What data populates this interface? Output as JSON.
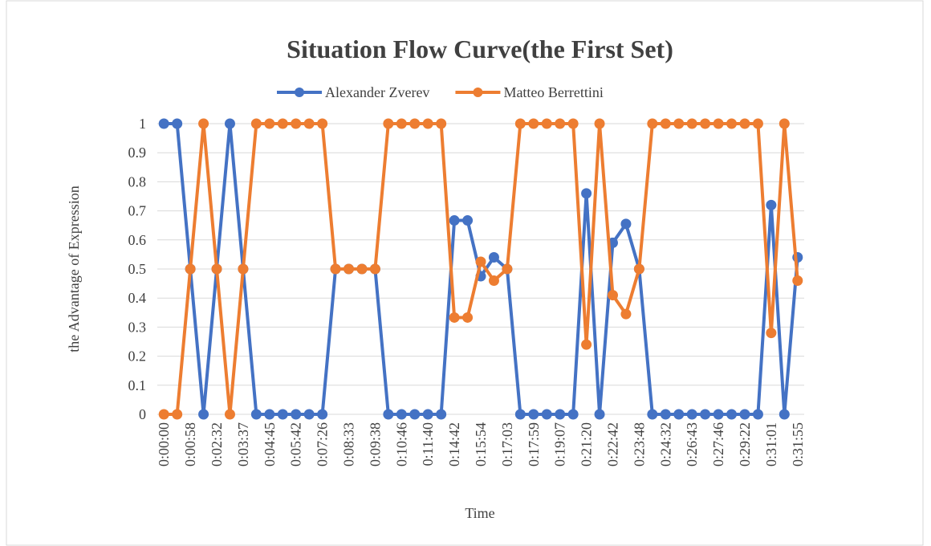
{
  "chart_data": {
    "type": "line",
    "title": "Situation Flow Curve(the First Set)",
    "x_label": "Time",
    "y_label": "the Advantage of Expression",
    "categories": [
      "0:00:00",
      null,
      "0:00:58",
      null,
      "0:02:32",
      null,
      "0:03:37",
      null,
      "0:04:45",
      null,
      "0:05:42",
      null,
      "0:07:26",
      null,
      "0:08:33",
      null,
      "0:09:38",
      null,
      "0:10:46",
      null,
      "0:11:40",
      null,
      "0:14:42",
      null,
      "0:15:54",
      null,
      "0:17:03",
      null,
      "0:17:59",
      null,
      "0:19:07",
      null,
      "0:21:20",
      null,
      "0:22:42",
      null,
      "0:23:48",
      null,
      "0:24:32",
      null,
      "0:26:43",
      null,
      "0:27:46",
      null,
      "0:29:22",
      null,
      "0:31:01",
      null,
      "0:31:55"
    ],
    "series": [
      {
        "name": "Alexander Zverev",
        "color": "#4472c4",
        "values": [
          1,
          1,
          0.5,
          0,
          0.5,
          1,
          0.5,
          0,
          0,
          0,
          0,
          0,
          0,
          0.5,
          0.5,
          0.5,
          0.5,
          0,
          0,
          0,
          0,
          0,
          0.667,
          0.667,
          0.475,
          0.54,
          0.5,
          0,
          0,
          0,
          0,
          0,
          0.76,
          0,
          0.59,
          0.655,
          0.5,
          0,
          0,
          0,
          0,
          0,
          0,
          0,
          0,
          0,
          0.72,
          0,
          0.54
        ]
      },
      {
        "name": "Matteo Berrettini",
        "color": "#ed7d31",
        "values": [
          0,
          0,
          0.5,
          1,
          0.5,
          0,
          0.5,
          1,
          1,
          1,
          1,
          1,
          1,
          0.5,
          0.5,
          0.5,
          0.5,
          1,
          1,
          1,
          1,
          1,
          0.333,
          0.333,
          0.525,
          0.46,
          0.5,
          1,
          1,
          1,
          1,
          1,
          0.24,
          1,
          0.41,
          0.345,
          0.5,
          1,
          1,
          1,
          1,
          1,
          1,
          1,
          1,
          1,
          0.28,
          1,
          0.46
        ]
      }
    ],
    "ylim": [
      0,
      1
    ],
    "yticks": [
      0,
      0.1,
      0.2,
      0.3,
      0.4,
      0.5,
      0.6,
      0.7,
      0.8,
      0.9,
      1
    ],
    "grid": true,
    "legend": "top"
  }
}
